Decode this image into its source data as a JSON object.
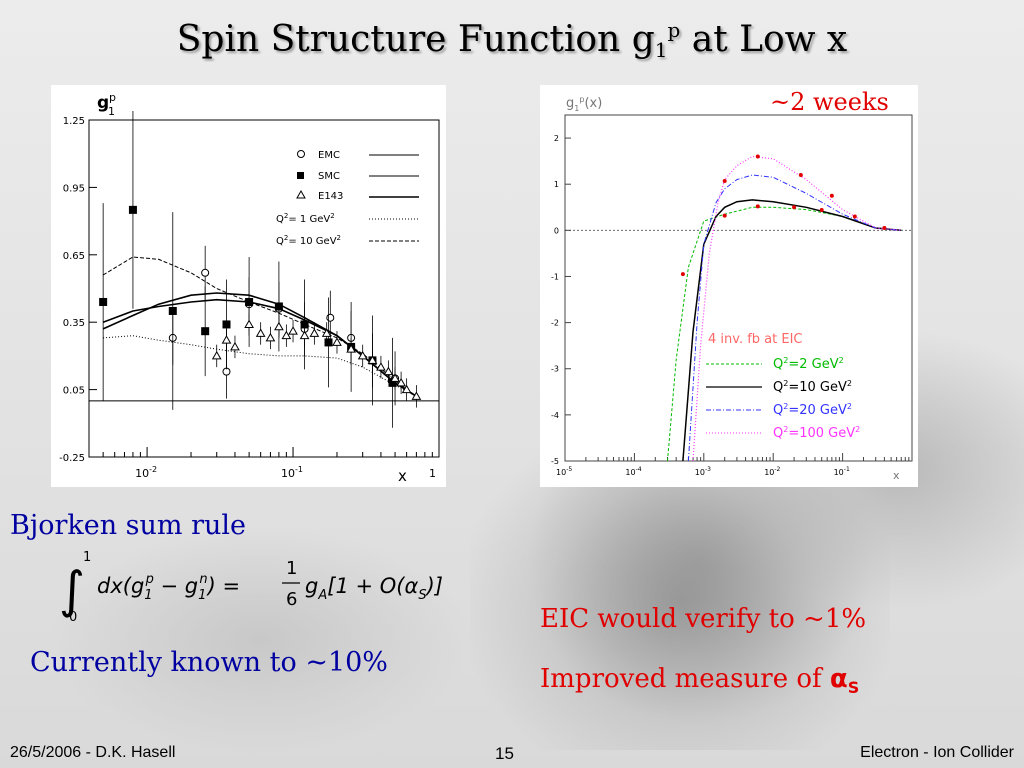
{
  "slide": {
    "title": "Spin Structure Function g",
    "title_sub": "1",
    "title_sup": "p",
    "title_tail": " at Low x",
    "note_weeks": "~2 weeks",
    "bjorken_label": "Bjorken sum rule",
    "formula": {
      "integral_upper": "1",
      "integral_lower": "0",
      "lhs": "dx(g",
      "g1p_sub": "1",
      "g1p_sup": "p",
      "minus": " − g",
      "g1n_sub": "1",
      "g1n_sup": "n",
      "eq": ") =",
      "frac_num": "1",
      "frac_den": "6",
      "rhs_g": "g",
      "rhs_g_sub": "A",
      "rhs_tail": "[1 + O(α",
      "rhs_alpha_sub": "S",
      "rhs_close": ")]"
    },
    "currently_known": "Currently known to ~10%",
    "eic_line": "EIC would verify to ~1%",
    "improved_prefix": "Improved measure of ",
    "improved_alpha": "α",
    "improved_alpha_sub": "S"
  },
  "footer": {
    "left": "26/5/2006 - D.K. Hasell",
    "page": "15",
    "right": "Electron - Ion Collider"
  },
  "colors": {
    "title": "#000000",
    "blue_text": "#0000a0",
    "red_text": "#e00000",
    "curve_q2_2": "#00bb00",
    "curve_q2_10": "#000000",
    "curve_q2_20": "#3333ff",
    "curve_q2_100": "#ff33ff"
  },
  "chart_data": [
    {
      "type": "scatter",
      "ylabel": "g1p",
      "ylabel_main": "g",
      "ylabel_sub": "1",
      "ylabel_sup": "p",
      "xlabel": "x",
      "x_scale": "log",
      "xlim": [
        0.004,
        1
      ],
      "ylim": [
        -0.25,
        1.25
      ],
      "ytick_labels": [
        "1.25",
        "0.95",
        "0.65",
        "0.35",
        "0.05",
        "-0.25"
      ],
      "xtick_labels": [
        "10",
        "-2",
        "10",
        "-1",
        "1"
      ],
      "legend": [
        {
          "label": "EMC",
          "marker": "open-circle"
        },
        {
          "label": "SMC",
          "marker": "filled-square"
        },
        {
          "label": "E143",
          "marker": "open-triangle"
        },
        {
          "label_main": "Q",
          "label_sup": "2",
          "label_tail": "= 1 GeV",
          "label_sup2": "2",
          "style": "dotted"
        },
        {
          "label_main": "Q",
          "label_sup": "2",
          "label_tail": "= 10 GeV",
          "label_sup2": "2",
          "style": "dashed"
        }
      ],
      "series": [
        {
          "name": "EMC",
          "x": [
            0.015,
            0.025,
            0.035,
            0.05,
            0.08,
            0.12,
            0.18,
            0.25,
            0.35,
            0.5
          ],
          "y": [
            0.28,
            0.57,
            0.13,
            0.43,
            0.41,
            0.32,
            0.37,
            0.28,
            0.18,
            0.1
          ]
        },
        {
          "name": "SMC",
          "x": [
            0.005,
            0.008,
            0.015,
            0.025,
            0.035,
            0.05,
            0.08,
            0.12,
            0.175,
            0.25,
            0.35,
            0.48
          ],
          "y": [
            0.44,
            0.85,
            0.4,
            0.31,
            0.34,
            0.44,
            0.42,
            0.34,
            0.26,
            0.24,
            0.18,
            0.08
          ]
        },
        {
          "name": "E143",
          "x": [
            0.03,
            0.035,
            0.04,
            0.05,
            0.06,
            0.07,
            0.08,
            0.09,
            0.1,
            0.12,
            0.14,
            0.17,
            0.2,
            0.25,
            0.3,
            0.35,
            0.4,
            0.45,
            0.5,
            0.55,
            0.6,
            0.7
          ],
          "y": [
            0.2,
            0.27,
            0.24,
            0.34,
            0.3,
            0.28,
            0.33,
            0.29,
            0.31,
            0.29,
            0.3,
            0.3,
            0.26,
            0.23,
            0.2,
            0.18,
            0.15,
            0.13,
            0.1,
            0.08,
            0.05,
            0.02
          ]
        }
      ],
      "curves": [
        {
          "name": "Q2 = 1 GeV2",
          "style": "dotted",
          "x": [
            0.005,
            0.008,
            0.012,
            0.02,
            0.03,
            0.05,
            0.08,
            0.12,
            0.2,
            0.3,
            0.5,
            0.7
          ],
          "y": [
            0.28,
            0.29,
            0.27,
            0.25,
            0.23,
            0.21,
            0.2,
            0.2,
            0.19,
            0.15,
            0.07,
            0.02
          ]
        },
        {
          "name": "Q2 = 10 GeV2",
          "style": "dashed",
          "x": [
            0.005,
            0.008,
            0.012,
            0.02,
            0.03,
            0.05,
            0.08,
            0.12,
            0.2,
            0.3,
            0.5,
            0.7
          ],
          "y": [
            0.56,
            0.64,
            0.63,
            0.57,
            0.5,
            0.44,
            0.39,
            0.34,
            0.28,
            0.21,
            0.09,
            0.02
          ]
        },
        {
          "name": "fit-a",
          "style": "solid",
          "x": [
            0.005,
            0.008,
            0.012,
            0.02,
            0.03,
            0.05,
            0.08,
            0.12,
            0.2,
            0.3,
            0.5,
            0.7
          ],
          "y": [
            0.32,
            0.38,
            0.43,
            0.47,
            0.48,
            0.47,
            0.43,
            0.37,
            0.29,
            0.2,
            0.08,
            0.02
          ]
        },
        {
          "name": "fit-b",
          "style": "solid",
          "x": [
            0.005,
            0.008,
            0.012,
            0.02,
            0.03,
            0.05,
            0.08,
            0.12,
            0.2,
            0.3,
            0.5,
            0.7
          ],
          "y": [
            0.35,
            0.4,
            0.42,
            0.44,
            0.45,
            0.44,
            0.41,
            0.36,
            0.29,
            0.2,
            0.08,
            0.02
          ]
        }
      ]
    },
    {
      "type": "line",
      "ylabel": "g1p(x)",
      "ylabel_main": "g",
      "ylabel_sub": "1",
      "ylabel_sup": "p",
      "ylabel_tail": "(x)",
      "xlabel": "x",
      "x_scale": "log",
      "xlim": [
        1e-05,
        1
      ],
      "ylim": [
        -5,
        2.5
      ],
      "ytick_labels": [
        "2",
        "1",
        "0",
        "-1",
        "-2",
        "-3",
        "-4",
        "-5"
      ],
      "xtick_labels": [
        "10",
        "-5",
        "10",
        "-4",
        "10",
        "-3",
        "10",
        "-2",
        "10",
        "-1"
      ],
      "legend_title": "4 inv. fb at EIC",
      "legend": [
        {
          "label_main": "Q",
          "label_sup": "2",
          "label_tail": "=2 GeV",
          "label_sup2": "2",
          "color": "#00bb00",
          "style": "dashed"
        },
        {
          "label_main": "Q",
          "label_sup": "2",
          "label_tail": "=10 GeV",
          "label_sup2": "2",
          "color": "#000000",
          "style": "solid"
        },
        {
          "label_main": "Q",
          "label_sup": "2",
          "label_tail": "=20 GeV",
          "label_sup2": "2",
          "color": "#3333ff",
          "style": "dashdot"
        },
        {
          "label_main": "Q",
          "label_sup": "2",
          "label_tail": "=100 GeV",
          "label_sup2": "2",
          "color": "#ff33ff",
          "style": "dotted"
        }
      ],
      "series": [
        {
          "name": "Q2=2 GeV2",
          "x": [
            0.0003,
            0.0004,
            0.0006,
            0.001,
            0.002,
            0.005,
            0.01,
            0.03,
            0.1,
            0.3,
            0.7
          ],
          "y": [
            -5,
            -2.8,
            -0.8,
            0.2,
            0.35,
            0.5,
            0.5,
            0.45,
            0.3,
            0.05,
            0
          ]
        },
        {
          "name": "Q2=10 GeV2",
          "x": [
            0.0005,
            0.0007,
            0.001,
            0.0015,
            0.002,
            0.003,
            0.005,
            0.01,
            0.03,
            0.1,
            0.3,
            0.7
          ],
          "y": [
            -5,
            -2.2,
            -0.3,
            0.3,
            0.5,
            0.62,
            0.66,
            0.62,
            0.5,
            0.3,
            0.05,
            0
          ]
        },
        {
          "name": "Q2=20 GeV2",
          "x": [
            0.0006,
            0.0008,
            0.001,
            0.0015,
            0.002,
            0.003,
            0.005,
            0.01,
            0.03,
            0.1,
            0.3,
            0.7
          ],
          "y": [
            -5,
            -2.0,
            -0.3,
            0.6,
            0.9,
            1.1,
            1.2,
            1.15,
            0.8,
            0.35,
            0.05,
            0
          ]
        },
        {
          "name": "Q2=100 GeV2",
          "x": [
            0.0007,
            0.0009,
            0.0012,
            0.0016,
            0.002,
            0.003,
            0.005,
            0.01,
            0.03,
            0.1,
            0.3,
            0.7
          ],
          "y": [
            -5,
            -2.5,
            -0.5,
            0.6,
            1.1,
            1.4,
            1.6,
            1.55,
            1.1,
            0.45,
            0.05,
            0
          ]
        }
      ],
      "points": [
        {
          "x": 0.0005,
          "y": -0.95
        },
        {
          "x": 0.002,
          "y": 0.32
        },
        {
          "x": 0.006,
          "y": 0.52
        },
        {
          "x": 0.02,
          "y": 0.5
        },
        {
          "x": 0.05,
          "y": 0.44
        },
        {
          "x": 0.15,
          "y": 0.3
        },
        {
          "x": 0.4,
          "y": 0.05
        },
        {
          "x": 0.002,
          "y": 1.07
        },
        {
          "x": 0.006,
          "y": 1.6
        },
        {
          "x": 0.025,
          "y": 1.2
        },
        {
          "x": 0.07,
          "y": 0.75
        }
      ]
    }
  ]
}
